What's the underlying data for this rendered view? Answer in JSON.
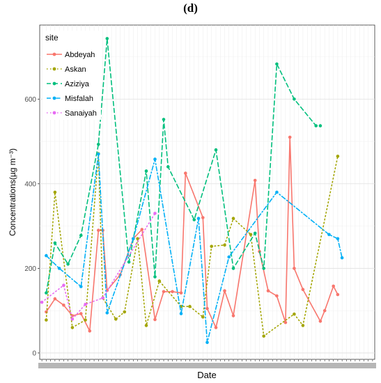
{
  "panel_label": "(d)",
  "chart_data": {
    "type": "line",
    "ylabel": "Concentrations(µg m⁻³)",
    "xlabel": "Date",
    "legend_title": "site",
    "legend_position": "top-left",
    "grid": true,
    "ylim": [
      -15,
      775
    ],
    "yticks": [
      0,
      200,
      400,
      600
    ],
    "x": [
      1,
      2,
      3,
      4,
      5,
      6,
      7,
      8,
      9,
      10,
      11,
      12,
      13,
      14,
      15,
      16,
      17,
      18,
      19,
      20,
      21,
      22,
      23,
      24,
      25,
      26,
      27,
      28,
      29,
      30,
      31,
      32,
      33,
      34,
      35,
      36,
      37,
      38,
      39,
      40,
      41,
      42,
      43,
      44,
      45,
      46,
      47,
      48,
      49,
      50,
      51,
      52,
      53,
      54,
      55,
      56,
      57,
      58,
      59,
      60,
      61,
      62,
      63,
      64,
      65,
      66,
      67,
      68,
      69,
      70,
      71,
      72,
      73,
      74,
      75,
      76,
      77
    ],
    "xlim": [
      0.5,
      77.5
    ],
    "series": [
      {
        "name": "Abdeyah",
        "color": "#F8766D",
        "dash": "solid",
        "values": [
          null,
          97,
          null,
          128,
          null,
          113,
          null,
          88,
          null,
          93,
          null,
          52,
          null,
          290,
          290,
          148,
          null,
          null,
          185,
          null,
          null,
          270,
          null,
          292,
          null,
          null,
          79,
          null,
          145,
          null,
          145,
          null,
          142,
          425,
          null,
          null,
          null,
          320,
          105,
          null,
          60,
          null,
          147,
          null,
          88,
          null,
          null,
          null,
          null,
          408,
          240,
          null,
          147,
          null,
          135,
          null,
          72,
          510,
          200,
          null,
          150,
          null,
          null,
          null,
          75,
          100,
          null,
          158,
          138,
          null,
          null,
          null,
          null,
          null,
          null,
          null,
          null
        ]
      },
      {
        "name": "Askan",
        "color": "#A3A500",
        "dash": "dotted",
        "values": [
          null,
          78,
          null,
          380,
          null,
          null,
          null,
          60,
          null,
          null,
          78,
          null,
          null,
          471,
          130,
          null,
          null,
          80,
          null,
          97,
          null,
          null,
          270,
          null,
          65,
          null,
          null,
          170,
          null,
          null,
          null,
          null,
          110,
          null,
          110,
          null,
          null,
          85,
          null,
          252,
          null,
          null,
          255,
          null,
          318,
          null,
          null,
          null,
          280,
          null,
          null,
          40,
          null,
          null,
          null,
          null,
          null,
          null,
          92,
          null,
          65,
          null,
          null,
          null,
          null,
          null,
          null,
          null,
          465,
          null,
          null,
          null,
          null,
          null,
          null,
          null,
          null
        ]
      },
      {
        "name": "Aziziya",
        "color": "#00BF7D",
        "dash": "dashed",
        "values": [
          null,
          142,
          null,
          260,
          null,
          null,
          210,
          null,
          null,
          278,
          null,
          null,
          null,
          493,
          null,
          743,
          null,
          null,
          null,
          null,
          215,
          null,
          null,
          null,
          430,
          null,
          180,
          null,
          552,
          440,
          null,
          null,
          null,
          null,
          null,
          315,
          null,
          null,
          null,
          null,
          480,
          null,
          null,
          null,
          200,
          null,
          null,
          null,
          null,
          283,
          null,
          200,
          null,
          null,
          683,
          null,
          null,
          null,
          600,
          null,
          null,
          null,
          null,
          537,
          537,
          null,
          null,
          null,
          null,
          null,
          null,
          null,
          null,
          null,
          null,
          null,
          null
        ]
      },
      {
        "name": "Misfalah",
        "color": "#00B0F6",
        "dash": "dashdot",
        "values": [
          null,
          230,
          null,
          null,
          200,
          null,
          null,
          null,
          null,
          157,
          null,
          null,
          null,
          470,
          null,
          95,
          null,
          null,
          null,
          null,
          null,
          270,
          null,
          null,
          null,
          null,
          458,
          null,
          null,
          null,
          null,
          null,
          93,
          null,
          null,
          null,
          318,
          null,
          25,
          null,
          null,
          null,
          null,
          227,
          null,
          null,
          null,
          null,
          null,
          null,
          null,
          null,
          null,
          null,
          380,
          null,
          null,
          null,
          null,
          null,
          null,
          null,
          null,
          null,
          null,
          null,
          280,
          null,
          270,
          225,
          null,
          null,
          null,
          null,
          null,
          null,
          null
        ]
      },
      {
        "name": "Sanaiyah",
        "color": "#E76BF3",
        "dash": "dotted",
        "values": [
          120,
          null,
          null,
          null,
          null,
          160,
          null,
          80,
          null,
          null,
          115,
          null,
          null,
          null,
          130,
          null,
          null,
          null,
          null,
          null,
          null,
          null,
          null,
          null,
          null,
          null,
          330,
          null,
          null,
          null,
          null,
          null,
          null,
          null,
          null,
          null,
          null,
          null,
          null,
          null,
          null,
          null,
          null,
          null,
          null,
          null,
          null,
          null,
          null,
          null,
          null,
          null,
          null,
          null,
          null,
          null,
          null,
          null,
          null,
          null,
          null,
          null,
          null,
          null,
          null,
          null,
          null,
          null,
          null,
          null,
          null,
          null,
          null,
          null,
          null,
          null,
          null
        ]
      }
    ]
  }
}
